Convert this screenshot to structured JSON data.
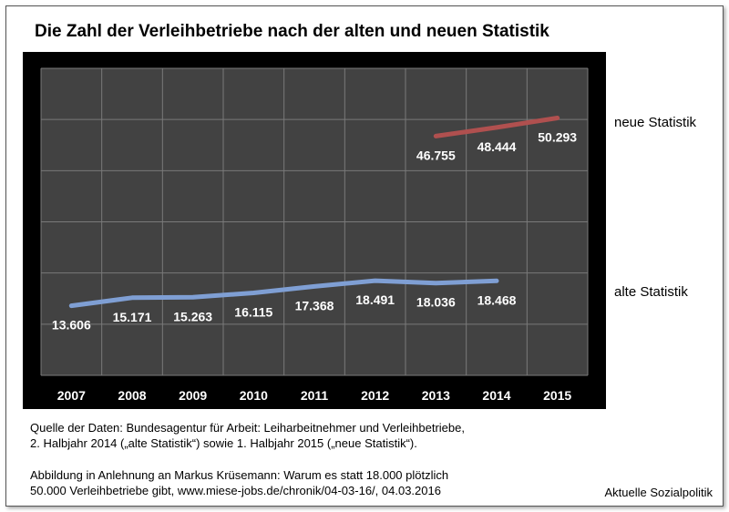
{
  "chart_data": {
    "type": "line",
    "title": "Die Zahl der Verleihbetriebe nach der alten und neuen Statistik",
    "categories": [
      "2007",
      "2008",
      "2009",
      "2010",
      "2011",
      "2012",
      "2013",
      "2014",
      "2015"
    ],
    "ylim": [
      0,
      60000
    ],
    "grid": true,
    "series": [
      {
        "name": "alte Statistik",
        "color": "#7f9fd4",
        "values": [
          13606,
          15171,
          15263,
          16115,
          17368,
          18491,
          18036,
          18468,
          null
        ],
        "labels": [
          "13.606",
          "15.171",
          "15.263",
          "16.115",
          "17.368",
          "18.491",
          "18.036",
          "18.468",
          null
        ]
      },
      {
        "name": "neue Statistik",
        "color": "#b0504f",
        "values": [
          null,
          null,
          null,
          null,
          null,
          null,
          46755,
          48444,
          50293
        ],
        "labels": [
          null,
          null,
          null,
          null,
          null,
          null,
          "46.755",
          "48.444",
          "50.293"
        ]
      }
    ]
  },
  "source": {
    "line1": "Quelle der Daten: Bundesagentur für Arbeit: Leiharbeitnehmer und Verleihbetriebe,",
    "line2": "2. Halbjahr 2014 („alte Statistik“) sowie 1. Halbjahr 2015  („neue Statistik“).",
    "line3": "Abbildung in Anlehnung an Markus Krüsemann: Warum es statt 18.000 plötzlich",
    "line4": "50.000 Verleihbetriebe gibt, www.miese-jobs.de/chronik/04-03-16/, 04.03.2016"
  },
  "brand": "Aktuelle Sozialpolitik"
}
